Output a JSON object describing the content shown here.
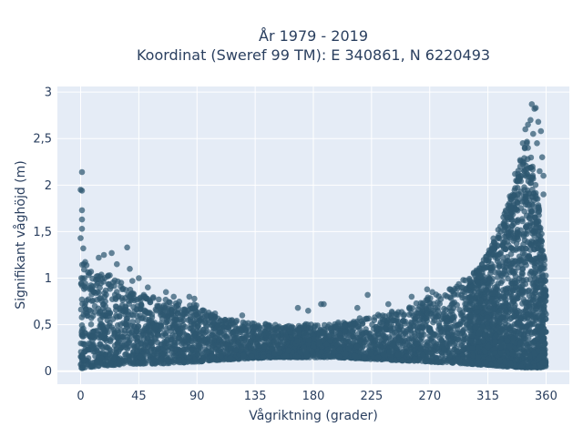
{
  "chart_data": {
    "type": "scatter",
    "title_lines": [
      "År 1979 - 2019",
      "Koordinat (Sweref 99 TM): E 340861, N 6220493"
    ],
    "xlabel": "Vågriktning (grader)",
    "ylabel": "Signifikant våghöjd (m)",
    "xlim": [
      -18,
      378
    ],
    "ylim": [
      -0.14,
      3.06
    ],
    "xticks": [
      0,
      45,
      90,
      135,
      180,
      225,
      270,
      315,
      360
    ],
    "xtick_labels": [
      "0",
      "45",
      "90",
      "135",
      "180",
      "225",
      "270",
      "315",
      "360"
    ],
    "yticks": [
      0,
      0.5,
      1,
      1.5,
      2,
      2.5,
      3
    ],
    "ytick_labels": [
      "0",
      "0,5",
      "1",
      "1,5",
      "2",
      "2,5",
      "3"
    ],
    "grid": true,
    "marker_color": "#2e5870",
    "background": "#e5ecf6",
    "envelope_note_x": [
      0,
      5,
      10,
      20,
      30,
      45,
      60,
      75,
      90,
      105,
      120,
      135,
      150,
      165,
      180,
      195,
      210,
      225,
      240,
      255,
      270,
      285,
      300,
      310,
      320,
      330,
      335,
      340,
      345,
      350,
      355,
      360
    ],
    "envelope_upper_y": [
      1.25,
      1.15,
      1.1,
      1.05,
      0.98,
      0.85,
      0.78,
      0.75,
      0.72,
      0.58,
      0.55,
      0.52,
      0.5,
      0.5,
      0.52,
      0.52,
      0.55,
      0.6,
      0.65,
      0.72,
      0.8,
      0.88,
      1.0,
      1.15,
      1.45,
      1.8,
      2.0,
      2.35,
      2.5,
      2.2,
      1.7,
      1.1
    ],
    "envelope_lower_y": [
      0.03,
      0.04,
      0.05,
      0.06,
      0.07,
      0.08,
      0.08,
      0.09,
      0.1,
      0.12,
      0.13,
      0.14,
      0.15,
      0.15,
      0.15,
      0.15,
      0.14,
      0.13,
      0.12,
      0.11,
      0.1,
      0.09,
      0.08,
      0.07,
      0.06,
      0.05,
      0.05,
      0.04,
      0.04,
      0.04,
      0.04,
      0.04
    ],
    "outliers": [
      {
        "x": 1,
        "y": 2.14
      },
      {
        "x": 0,
        "y": 1.95
      },
      {
        "x": 1,
        "y": 1.94
      },
      {
        "x": 1,
        "y": 1.73
      },
      {
        "x": 1,
        "y": 1.63
      },
      {
        "x": 1,
        "y": 1.53
      },
      {
        "x": 0,
        "y": 1.43
      },
      {
        "x": 2,
        "y": 1.32
      },
      {
        "x": 36,
        "y": 1.33
      },
      {
        "x": 24,
        "y": 1.27
      },
      {
        "x": 18,
        "y": 1.25
      },
      {
        "x": 14,
        "y": 1.22
      },
      {
        "x": 28,
        "y": 1.15
      },
      {
        "x": 38,
        "y": 1.1
      },
      {
        "x": 45,
        "y": 1.0
      },
      {
        "x": 40,
        "y": 0.97
      },
      {
        "x": 52,
        "y": 0.9
      },
      {
        "x": 66,
        "y": 0.85
      },
      {
        "x": 72,
        "y": 0.8
      },
      {
        "x": 84,
        "y": 0.8
      },
      {
        "x": 88,
        "y": 0.78
      },
      {
        "x": 104,
        "y": 0.62
      },
      {
        "x": 125,
        "y": 0.6
      },
      {
        "x": 168,
        "y": 0.68
      },
      {
        "x": 176,
        "y": 0.65
      },
      {
        "x": 186,
        "y": 0.72
      },
      {
        "x": 188,
        "y": 0.72
      },
      {
        "x": 214,
        "y": 0.68
      },
      {
        "x": 222,
        "y": 0.82
      },
      {
        "x": 238,
        "y": 0.72
      },
      {
        "x": 256,
        "y": 0.8
      },
      {
        "x": 268,
        "y": 0.88
      },
      {
        "x": 272,
        "y": 0.85
      },
      {
        "x": 286,
        "y": 0.88
      },
      {
        "x": 296,
        "y": 0.98
      },
      {
        "x": 304,
        "y": 1.05
      },
      {
        "x": 316,
        "y": 1.3
      },
      {
        "x": 318,
        "y": 1.32
      },
      {
        "x": 323,
        "y": 1.52
      },
      {
        "x": 325,
        "y": 1.5
      },
      {
        "x": 330,
        "y": 1.65
      },
      {
        "x": 332,
        "y": 1.88
      },
      {
        "x": 338,
        "y": 2.05
      },
      {
        "x": 340,
        "y": 2.2
      },
      {
        "x": 342,
        "y": 2.45
      },
      {
        "x": 344,
        "y": 2.6
      },
      {
        "x": 346,
        "y": 2.65
      },
      {
        "x": 348,
        "y": 2.7
      },
      {
        "x": 349,
        "y": 2.87
      },
      {
        "x": 351,
        "y": 2.82
      },
      {
        "x": 352,
        "y": 2.83
      },
      {
        "x": 354,
        "y": 2.68
      },
      {
        "x": 356,
        "y": 2.58
      },
      {
        "x": 357,
        "y": 2.3
      },
      {
        "x": 358,
        "y": 2.1
      },
      {
        "x": 358,
        "y": 1.9
      },
      {
        "x": 350,
        "y": 2.55
      },
      {
        "x": 353,
        "y": 2.45
      },
      {
        "x": 355,
        "y": 2.15
      },
      {
        "x": 336,
        "y": 2.12
      }
    ]
  }
}
